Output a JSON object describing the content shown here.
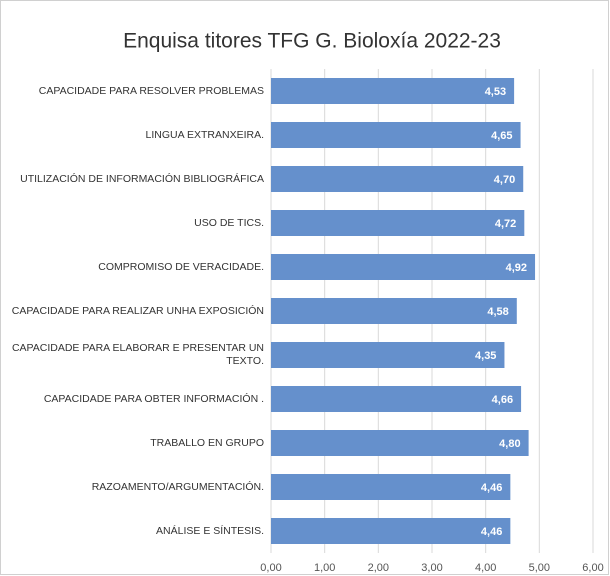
{
  "chart_data": {
    "type": "bar",
    "orientation": "horizontal",
    "title": "Enquisa titores TFG G. Bioloxía 2022-23",
    "categories": [
      "CAPACIDADE PARA RESOLVER PROBLEMAS",
      "LINGUA EXTRANXEIRA.",
      "UTILIZACIÓN DE INFORMACIÓN BIBLIOGRÁFICA",
      "USO DE TICS.",
      "COMPROMISO DE VERACIDADE.",
      "CAPACIDADE PARA REALIZAR UNHA EXPOSICIÓN",
      "CAPACIDADE PARA ELABORAR E PRESENTAR UN TEXTO.",
      "CAPACIDADE PARA OBTER INFORMACIÓN .",
      "TRABALLO EN GRUPO",
      "RAZOAMENTO/ARGUMENTACIÓN.",
      "ANÁLISE E SÍNTESIS."
    ],
    "values": [
      4.53,
      4.65,
      4.7,
      4.72,
      4.92,
      4.58,
      4.35,
      4.66,
      4.8,
      4.46,
      4.46
    ],
    "value_labels": [
      "4,53",
      "4,65",
      "4,70",
      "4,72",
      "4,92",
      "4,58",
      "4,35",
      "4,66",
      "4,80",
      "4,46",
      "4,46"
    ],
    "color": "#6590cc",
    "xlim": [
      0,
      6
    ],
    "xticks": [
      {
        "value": 0,
        "label": "0,00"
      },
      {
        "value": 1,
        "label": "1,00"
      },
      {
        "value": 2,
        "label": "2,00"
      },
      {
        "value": 3,
        "label": "3,00"
      },
      {
        "value": 4,
        "label": "4,00"
      },
      {
        "value": 5,
        "label": "5,00"
      },
      {
        "value": 6,
        "label": "6,00"
      }
    ],
    "grid": true
  }
}
